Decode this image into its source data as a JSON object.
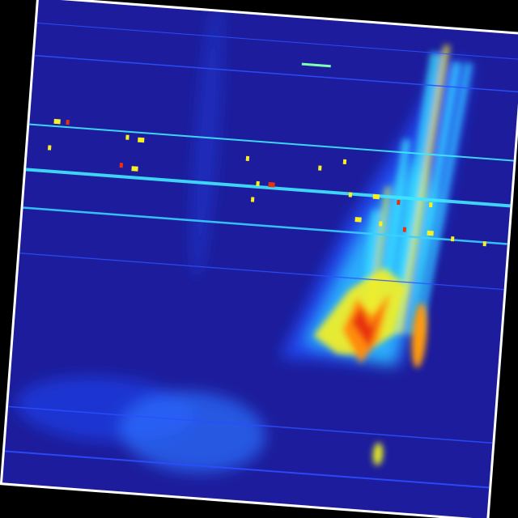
{
  "image": {
    "colormap": "jet",
    "colors": {
      "background": "#000000",
      "frame": "#ffffff",
      "field": "#1c1c9c",
      "low": "#1a3cff",
      "mid": "#38e0ff",
      "high": "#f8f020",
      "peak": "#e83010"
    }
  }
}
